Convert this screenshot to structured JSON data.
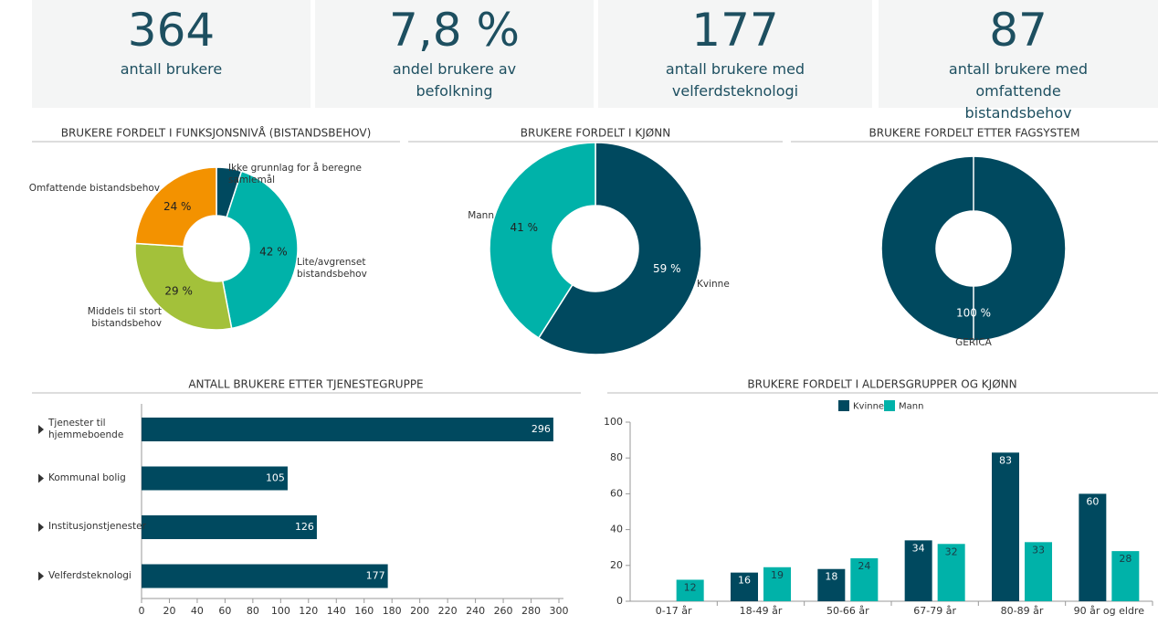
{
  "kpis": [
    {
      "value": "364",
      "label": "antall brukere"
    },
    {
      "value": "7,8 %",
      "label": "andel brukere av befolkning"
    },
    {
      "value": "177",
      "label": "antall brukere med velferdsteknologi"
    },
    {
      "value": "87",
      "label": "antall brukere med omfattende bistandsbehov"
    }
  ],
  "chart_data": [
    {
      "type": "donut",
      "title": "BRUKERE FORDELT I FUNKSJONSNIVÅ (BISTANDSBEHOV)",
      "categories": [
        "Ikke grunnlag for å beregne samlemål",
        "Lite/avgrenset bistandsbehov",
        "Middels til stort bistandsbehov",
        "Omfattende bistandsbehov"
      ],
      "values": [
        5,
        42,
        29,
        24
      ],
      "value_labels": [
        null,
        "42 %",
        "29 %",
        "24 %"
      ],
      "colors": [
        "#00495f",
        "#00b2a9",
        "#a3c13a",
        "#f39200"
      ]
    },
    {
      "type": "donut",
      "title": "BRUKERE FORDELT I KJØNN",
      "categories": [
        "Kvinne",
        "Mann"
      ],
      "values": [
        59,
        41
      ],
      "value_labels": [
        "59 %",
        "41 %"
      ],
      "colors": [
        "#00495f",
        "#00b2a9"
      ]
    },
    {
      "type": "donut",
      "title": "BRUKERE FORDELT ETTER FAGSYSTEM",
      "categories": [
        "GERICA"
      ],
      "values": [
        100
      ],
      "value_labels": [
        "100 %"
      ],
      "colors": [
        "#00495f"
      ]
    },
    {
      "type": "hbar",
      "title": "ANTALL BRUKERE ETTER TJENESTEGRUPPE",
      "categories": [
        "Tjenester til hjemmeboende",
        "Kommunal bolig",
        "Institusjonstjenester",
        "Velferdsteknologi"
      ],
      "values": [
        296,
        105,
        126,
        177
      ],
      "color": "#00495f",
      "xlim": [
        0,
        300
      ],
      "xticks": [
        0,
        20,
        40,
        60,
        80,
        100,
        120,
        140,
        160,
        180,
        200,
        220,
        240,
        260,
        280,
        300
      ]
    },
    {
      "type": "grouped_bar",
      "title": "BRUKERE FORDELT I ALDERSGRUPPER OG KJØNN",
      "categories": [
        "0-17 år",
        "18-49 år",
        "50-66 år",
        "67-79 år",
        "80-89 år",
        "90 år og eldre"
      ],
      "series": [
        {
          "name": "Kvinne",
          "color": "#00495f",
          "values": [
            null,
            16,
            18,
            34,
            83,
            60
          ]
        },
        {
          "name": "Mann",
          "color": "#00b2a9",
          "values": [
            12,
            19,
            24,
            32,
            33,
            28
          ]
        }
      ],
      "ylim": [
        0,
        100
      ],
      "yticks": [
        0,
        20,
        40,
        60,
        80,
        100
      ],
      "legend": "top"
    }
  ]
}
